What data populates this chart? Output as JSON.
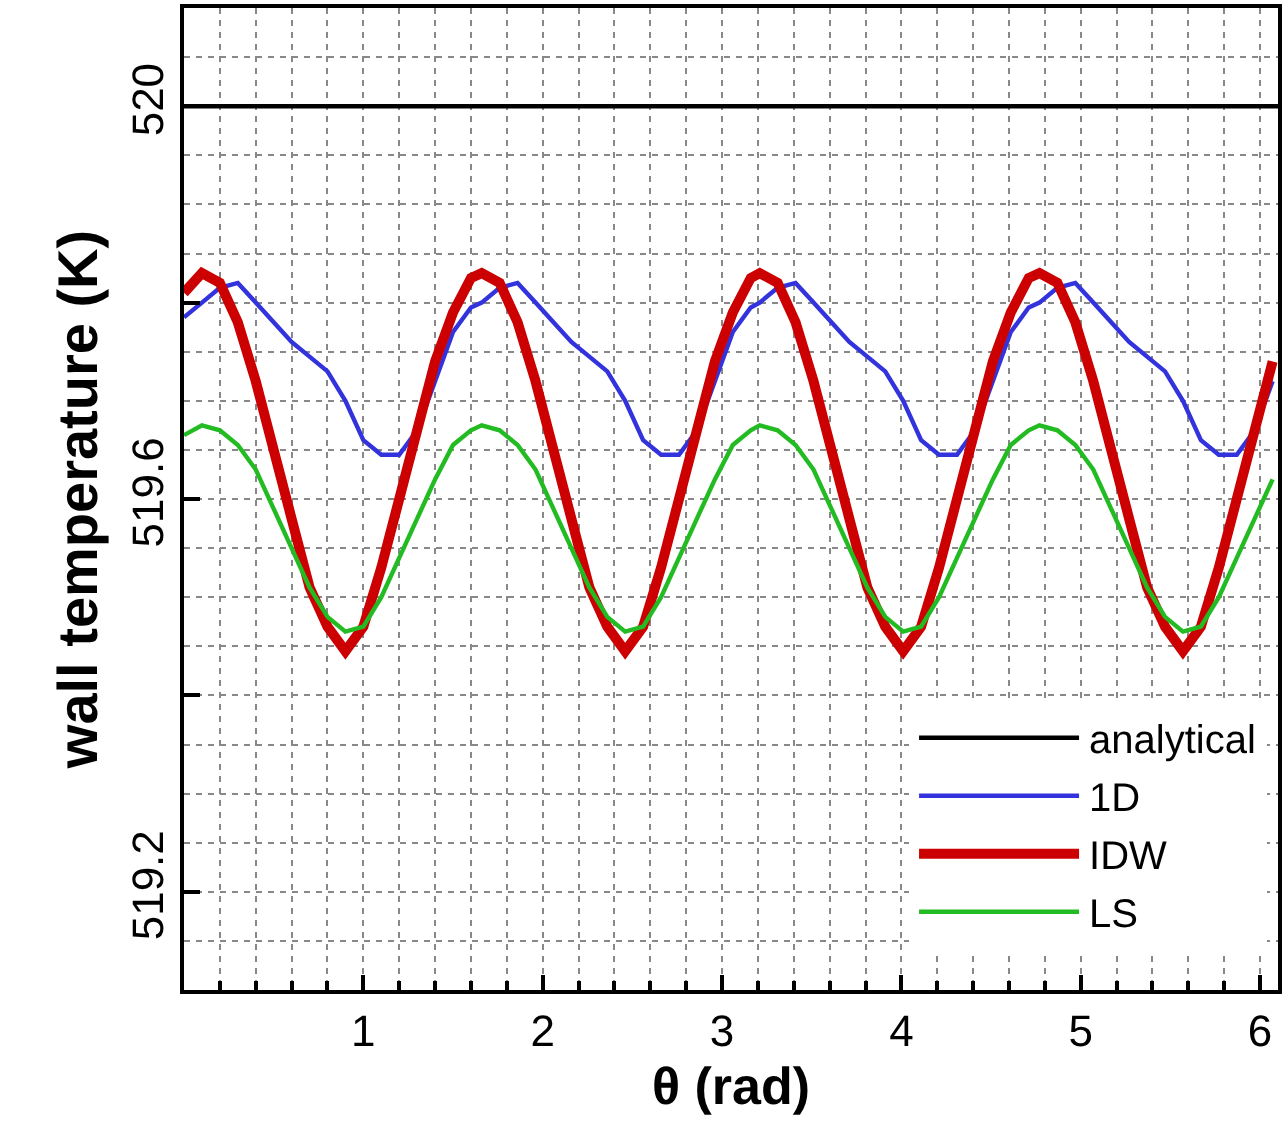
{
  "chart_data": {
    "type": "line",
    "xlabel": "θ (rad)",
    "ylabel": "wall temperature (K)",
    "xlim": [
      0,
      6.1
    ],
    "ylim": [
      519.1,
      520.1
    ],
    "xticks": [
      1,
      2,
      3,
      4,
      5,
      6
    ],
    "yticks": [
      519.2,
      {
        "value": 519.4,
        "label": null
      },
      519.6,
      {
        "value": 519.8,
        "label": null
      },
      520
    ],
    "grid": true,
    "legend": "bottom right",
    "line_style": "solid",
    "marker": "none",
    "x": [
      0,
      0.1,
      0.2,
      0.3,
      0.4,
      0.5,
      0.6,
      0.7,
      0.8,
      0.9,
      1.0,
      1.1,
      1.2,
      1.3,
      1.4,
      1.5,
      1.6,
      1.66,
      1.76,
      1.86,
      1.96,
      2.06,
      2.16,
      2.26,
      2.36,
      2.46,
      2.56,
      2.66,
      2.76,
      2.86,
      2.96,
      3.06,
      3.16,
      3.21,
      3.31,
      3.41,
      3.51,
      3.61,
      3.71,
      3.81,
      3.91,
      4.01,
      4.11,
      4.21,
      4.31,
      4.41,
      4.51,
      4.61,
      4.71,
      4.77,
      4.87,
      4.97,
      5.07,
      5.17,
      5.27,
      5.37,
      5.47,
      5.57,
      5.67,
      5.77,
      5.87,
      5.97,
      6.07
    ],
    "series": [
      {
        "name": "analytical",
        "color": "#000000",
        "x": [
          0,
          6.1
        ],
        "values": [
          520,
          520
        ]
      },
      {
        "name": "1D",
        "color": "#3333dd",
        "values": [
          519.785,
          519.8,
          519.815,
          519.82,
          519.8,
          519.78,
          519.76,
          519.745,
          519.73,
          519.7,
          519.66,
          519.645,
          519.645,
          519.67,
          519.72,
          519.77,
          519.795,
          519.8,
          519.815,
          519.82,
          519.8,
          519.78,
          519.76,
          519.745,
          519.73,
          519.7,
          519.66,
          519.645,
          519.645,
          519.67,
          519.72,
          519.77,
          519.795,
          519.8,
          519.815,
          519.82,
          519.8,
          519.78,
          519.76,
          519.745,
          519.73,
          519.7,
          519.66,
          519.645,
          519.645,
          519.67,
          519.72,
          519.77,
          519.795,
          519.8,
          519.815,
          519.82,
          519.8,
          519.78,
          519.76,
          519.745,
          519.73,
          519.7,
          519.66,
          519.645,
          519.645,
          519.67,
          519.72
        ]
      },
      {
        "name": "IDW",
        "color": "#cc0000",
        "values": [
          519.81,
          519.83,
          519.82,
          519.78,
          519.72,
          519.65,
          519.58,
          519.51,
          519.47,
          519.445,
          519.47,
          519.53,
          519.6,
          519.67,
          519.74,
          519.79,
          519.825,
          519.83,
          519.82,
          519.78,
          519.72,
          519.65,
          519.58,
          519.51,
          519.47,
          519.445,
          519.47,
          519.53,
          519.6,
          519.67,
          519.74,
          519.79,
          519.825,
          519.83,
          519.82,
          519.78,
          519.72,
          519.65,
          519.58,
          519.51,
          519.47,
          519.445,
          519.47,
          519.53,
          519.6,
          519.67,
          519.74,
          519.79,
          519.825,
          519.83,
          519.82,
          519.78,
          519.72,
          519.65,
          519.58,
          519.51,
          519.47,
          519.445,
          519.47,
          519.53,
          519.6,
          519.67,
          519.74
        ]
      },
      {
        "name": "LS",
        "color": "#22bb22",
        "values": [
          519.665,
          519.675,
          519.67,
          519.655,
          519.63,
          519.59,
          519.55,
          519.51,
          519.48,
          519.465,
          519.47,
          519.5,
          519.54,
          519.58,
          519.62,
          519.655,
          519.67,
          519.675,
          519.67,
          519.655,
          519.63,
          519.59,
          519.55,
          519.51,
          519.48,
          519.465,
          519.47,
          519.5,
          519.54,
          519.58,
          519.62,
          519.655,
          519.67,
          519.675,
          519.67,
          519.655,
          519.63,
          519.59,
          519.55,
          519.51,
          519.48,
          519.465,
          519.47,
          519.5,
          519.54,
          519.58,
          519.62,
          519.655,
          519.67,
          519.675,
          519.67,
          519.655,
          519.63,
          519.59,
          519.55,
          519.51,
          519.48,
          519.465,
          519.47,
          519.5,
          519.54,
          519.58,
          519.62
        ]
      }
    ]
  }
}
